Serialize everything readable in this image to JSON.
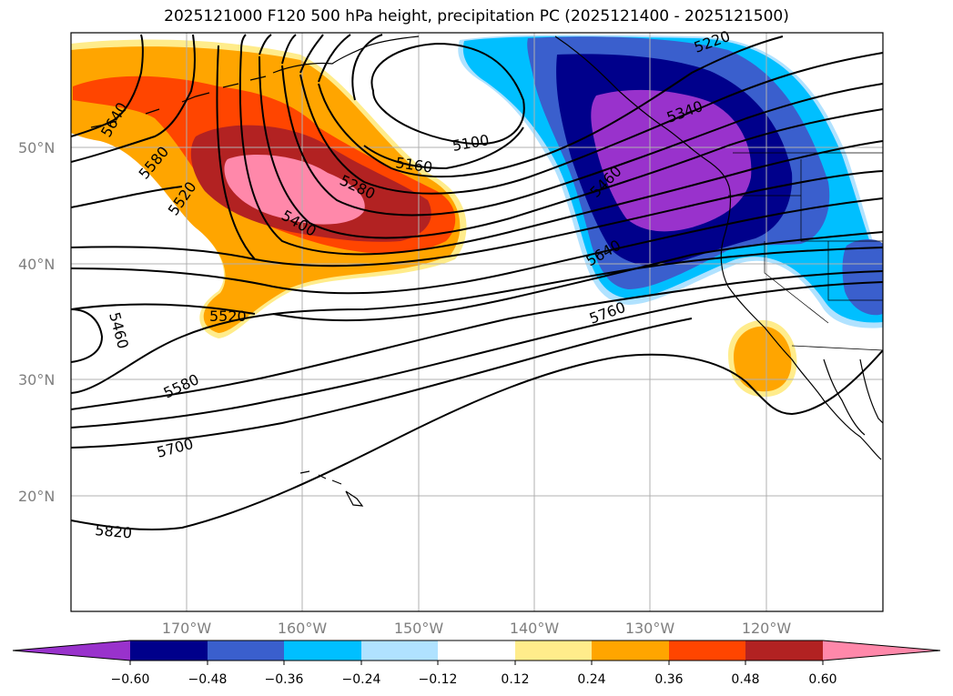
{
  "title": "2025121000 F120 500 hPa height, precipitation PC (2025121400 - 2025121500)",
  "map": {
    "lat_ticks": [
      "50°N",
      "40°N",
      "30°N",
      "20°N"
    ],
    "lon_ticks": [
      "170°W",
      "160°W",
      "150°W",
      "140°W",
      "130°W",
      "120°W"
    ],
    "contour_labels": [
      "5640",
      "5580",
      "5520",
      "5400",
      "5280",
      "5160",
      "5100",
      "5220",
      "5340",
      "5460",
      "5640",
      "5760",
      "5520",
      "5460",
      "5580",
      "5700",
      "5820"
    ]
  },
  "colorbar": {
    "ticks": [
      "−0.60",
      "−0.48",
      "−0.36",
      "−0.24",
      "−0.12",
      "0.12",
      "0.24",
      "0.36",
      "0.48",
      "0.60"
    ],
    "colors": [
      "#9932cc",
      "#00008b",
      "#3a5fcd",
      "#00bfff",
      "#b0e2ff",
      "#ffffff",
      "#ffec8b",
      "#ffa500",
      "#ff4500",
      "#b22222",
      "#ff88aa"
    ]
  },
  "chart_data": {
    "type": "map",
    "title": "2025121000 F120 500 hPa height, precipitation PC (2025121400 - 2025121500)",
    "field_contours": "500 hPa geopotential height (m)",
    "field_shading": "precipitation PC",
    "contour_values": [
      5100,
      5160,
      5220,
      5280,
      5340,
      5400,
      5460,
      5520,
      5580,
      5640,
      5700,
      5760,
      5820
    ],
    "lat_range": [
      10,
      60
    ],
    "lon_range": [
      -180,
      -110
    ],
    "colorbar_levels": [
      -0.6,
      -0.48,
      -0.36,
      -0.24,
      -0.12,
      0.12,
      0.24,
      0.36,
      0.48,
      0.6
    ],
    "colorbar_extend": "both"
  }
}
